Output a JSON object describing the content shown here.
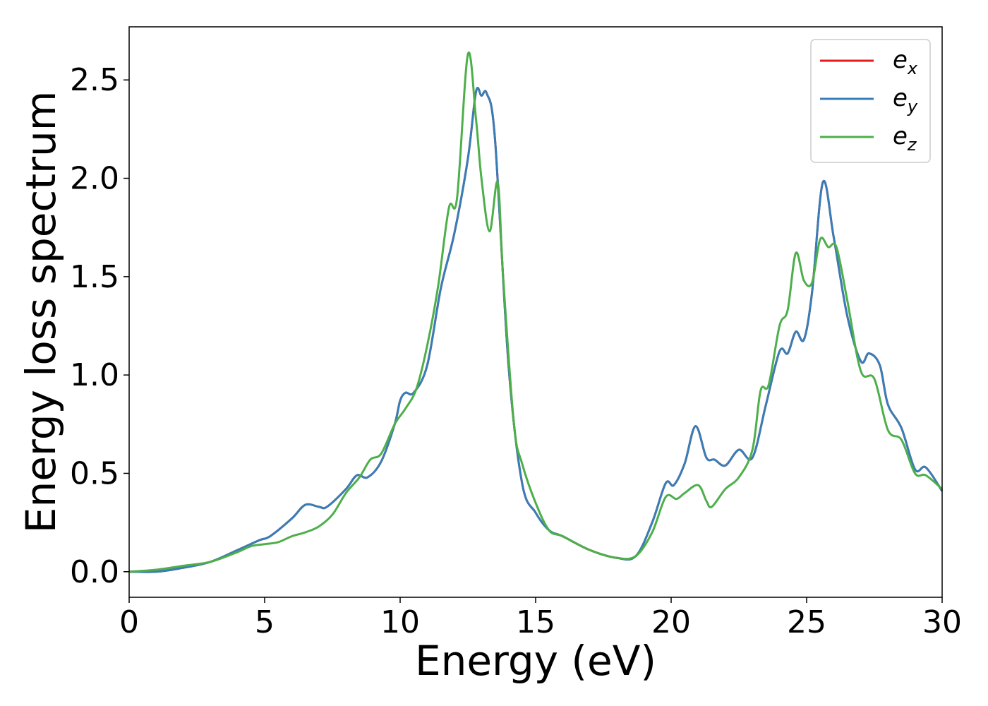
{
  "chart_data": {
    "type": "line",
    "xlabel": "Energy (eV)",
    "ylabel": "Energy loss spectrum",
    "xlim": [
      0,
      30
    ],
    "ylim": [
      -0.13,
      2.77
    ],
    "x_ticks": [
      "0",
      "5",
      "10",
      "15",
      "20",
      "25",
      "30"
    ],
    "y_ticks": [
      "0.0",
      "0.5",
      "1.0",
      "1.5",
      "2.0",
      "2.5"
    ],
    "grid": false,
    "legend_position": "top-right",
    "series": [
      {
        "name": "e",
        "subscript": "x",
        "color": "#e41a1c",
        "points": [
          [
            0,
            0.0
          ],
          [
            1,
            0.0
          ],
          [
            2,
            0.02
          ],
          [
            3,
            0.05
          ],
          [
            4,
            0.11
          ],
          [
            4.8,
            0.16
          ],
          [
            5.2,
            0.18
          ],
          [
            6,
            0.27
          ],
          [
            6.5,
            0.34
          ],
          [
            7,
            0.33
          ],
          [
            7.3,
            0.33
          ],
          [
            8,
            0.42
          ],
          [
            8.4,
            0.49
          ],
          [
            8.8,
            0.48
          ],
          [
            9.3,
            0.56
          ],
          [
            9.8,
            0.75
          ],
          [
            10,
            0.87
          ],
          [
            10.2,
            0.91
          ],
          [
            10.5,
            0.91
          ],
          [
            11,
            1.05
          ],
          [
            11.5,
            1.44
          ],
          [
            12,
            1.72
          ],
          [
            12.5,
            2.1
          ],
          [
            12.8,
            2.44
          ],
          [
            13,
            2.42
          ],
          [
            13.2,
            2.43
          ],
          [
            13.5,
            2.2
          ],
          [
            14,
            1.05
          ],
          [
            14.5,
            0.45
          ],
          [
            15,
            0.3
          ],
          [
            15.5,
            0.21
          ],
          [
            16,
            0.18
          ],
          [
            17,
            0.11
          ],
          [
            18,
            0.07
          ],
          [
            18.7,
            0.08
          ],
          [
            19.3,
            0.25
          ],
          [
            19.8,
            0.45
          ],
          [
            20.1,
            0.44
          ],
          [
            20.5,
            0.55
          ],
          [
            20.9,
            0.74
          ],
          [
            21.3,
            0.58
          ],
          [
            21.6,
            0.57
          ],
          [
            22,
            0.54
          ],
          [
            22.5,
            0.62
          ],
          [
            23,
            0.58
          ],
          [
            23.5,
            0.85
          ],
          [
            24,
            1.12
          ],
          [
            24.3,
            1.11
          ],
          [
            24.6,
            1.22
          ],
          [
            24.9,
            1.18
          ],
          [
            25.2,
            1.42
          ],
          [
            25.6,
            1.98
          ],
          [
            26,
            1.7
          ],
          [
            26.5,
            1.3
          ],
          [
            27,
            1.07
          ],
          [
            27.3,
            1.11
          ],
          [
            27.7,
            1.05
          ],
          [
            28,
            0.85
          ],
          [
            28.5,
            0.73
          ],
          [
            29,
            0.52
          ],
          [
            29.4,
            0.53
          ],
          [
            30,
            0.41
          ]
        ]
      },
      {
        "name": "e",
        "subscript": "y",
        "color": "#377eb8",
        "points": [
          [
            0,
            0.0
          ],
          [
            1,
            0.0
          ],
          [
            2,
            0.02
          ],
          [
            3,
            0.05
          ],
          [
            4,
            0.11
          ],
          [
            4.8,
            0.16
          ],
          [
            5.2,
            0.18
          ],
          [
            6,
            0.27
          ],
          [
            6.5,
            0.34
          ],
          [
            7,
            0.33
          ],
          [
            7.3,
            0.33
          ],
          [
            8,
            0.42
          ],
          [
            8.4,
            0.49
          ],
          [
            8.8,
            0.48
          ],
          [
            9.3,
            0.56
          ],
          [
            9.8,
            0.75
          ],
          [
            10,
            0.87
          ],
          [
            10.2,
            0.91
          ],
          [
            10.5,
            0.91
          ],
          [
            11,
            1.05
          ],
          [
            11.5,
            1.44
          ],
          [
            12,
            1.72
          ],
          [
            12.5,
            2.1
          ],
          [
            12.8,
            2.44
          ],
          [
            13,
            2.42
          ],
          [
            13.2,
            2.43
          ],
          [
            13.5,
            2.2
          ],
          [
            14,
            1.05
          ],
          [
            14.5,
            0.45
          ],
          [
            15,
            0.3
          ],
          [
            15.5,
            0.21
          ],
          [
            16,
            0.18
          ],
          [
            17,
            0.11
          ],
          [
            18,
            0.07
          ],
          [
            18.7,
            0.08
          ],
          [
            19.3,
            0.25
          ],
          [
            19.8,
            0.45
          ],
          [
            20.1,
            0.44
          ],
          [
            20.5,
            0.55
          ],
          [
            20.9,
            0.74
          ],
          [
            21.3,
            0.58
          ],
          [
            21.6,
            0.57
          ],
          [
            22,
            0.54
          ],
          [
            22.5,
            0.62
          ],
          [
            23,
            0.58
          ],
          [
            23.5,
            0.85
          ],
          [
            24,
            1.12
          ],
          [
            24.3,
            1.11
          ],
          [
            24.6,
            1.22
          ],
          [
            24.9,
            1.18
          ],
          [
            25.2,
            1.42
          ],
          [
            25.6,
            1.98
          ],
          [
            26,
            1.7
          ],
          [
            26.5,
            1.3
          ],
          [
            27,
            1.07
          ],
          [
            27.3,
            1.11
          ],
          [
            27.7,
            1.05
          ],
          [
            28,
            0.85
          ],
          [
            28.5,
            0.73
          ],
          [
            29,
            0.52
          ],
          [
            29.4,
            0.53
          ],
          [
            30,
            0.41
          ]
        ]
      },
      {
        "name": "e",
        "subscript": "z",
        "color": "#4daf4a",
        "points": [
          [
            0,
            0.0
          ],
          [
            1,
            0.01
          ],
          [
            2,
            0.03
          ],
          [
            3,
            0.05
          ],
          [
            4,
            0.1
          ],
          [
            4.5,
            0.13
          ],
          [
            5,
            0.14
          ],
          [
            5.5,
            0.15
          ],
          [
            6,
            0.18
          ],
          [
            6.5,
            0.2
          ],
          [
            7,
            0.23
          ],
          [
            7.5,
            0.29
          ],
          [
            8,
            0.4
          ],
          [
            8.5,
            0.48
          ],
          [
            8.9,
            0.57
          ],
          [
            9.3,
            0.6
          ],
          [
            9.8,
            0.75
          ],
          [
            10.2,
            0.83
          ],
          [
            10.6,
            0.93
          ],
          [
            11,
            1.15
          ],
          [
            11.4,
            1.45
          ],
          [
            11.8,
            1.85
          ],
          [
            12.1,
            1.9
          ],
          [
            12.5,
            2.63
          ],
          [
            12.8,
            2.3
          ],
          [
            13,
            2.0
          ],
          [
            13.3,
            1.73
          ],
          [
            13.6,
            1.98
          ],
          [
            13.8,
            1.5
          ],
          [
            14.2,
            0.75
          ],
          [
            14.5,
            0.55
          ],
          [
            15,
            0.35
          ],
          [
            15.5,
            0.21
          ],
          [
            16,
            0.18
          ],
          [
            17,
            0.11
          ],
          [
            18,
            0.07
          ],
          [
            18.7,
            0.08
          ],
          [
            19.3,
            0.2
          ],
          [
            19.8,
            0.38
          ],
          [
            20.2,
            0.37
          ],
          [
            20.5,
            0.4
          ],
          [
            21,
            0.44
          ],
          [
            21.3,
            0.36
          ],
          [
            21.5,
            0.33
          ],
          [
            22,
            0.42
          ],
          [
            22.5,
            0.48
          ],
          [
            23,
            0.62
          ],
          [
            23.3,
            0.92
          ],
          [
            23.6,
            0.95
          ],
          [
            24,
            1.25
          ],
          [
            24.3,
            1.33
          ],
          [
            24.6,
            1.62
          ],
          [
            24.9,
            1.48
          ],
          [
            25.2,
            1.47
          ],
          [
            25.5,
            1.69
          ],
          [
            25.8,
            1.65
          ],
          [
            26.1,
            1.65
          ],
          [
            26.5,
            1.38
          ],
          [
            27,
            1.02
          ],
          [
            27.5,
            0.98
          ],
          [
            28,
            0.72
          ],
          [
            28.5,
            0.67
          ],
          [
            29,
            0.5
          ],
          [
            29.4,
            0.49
          ],
          [
            30,
            0.42
          ]
        ]
      }
    ]
  }
}
